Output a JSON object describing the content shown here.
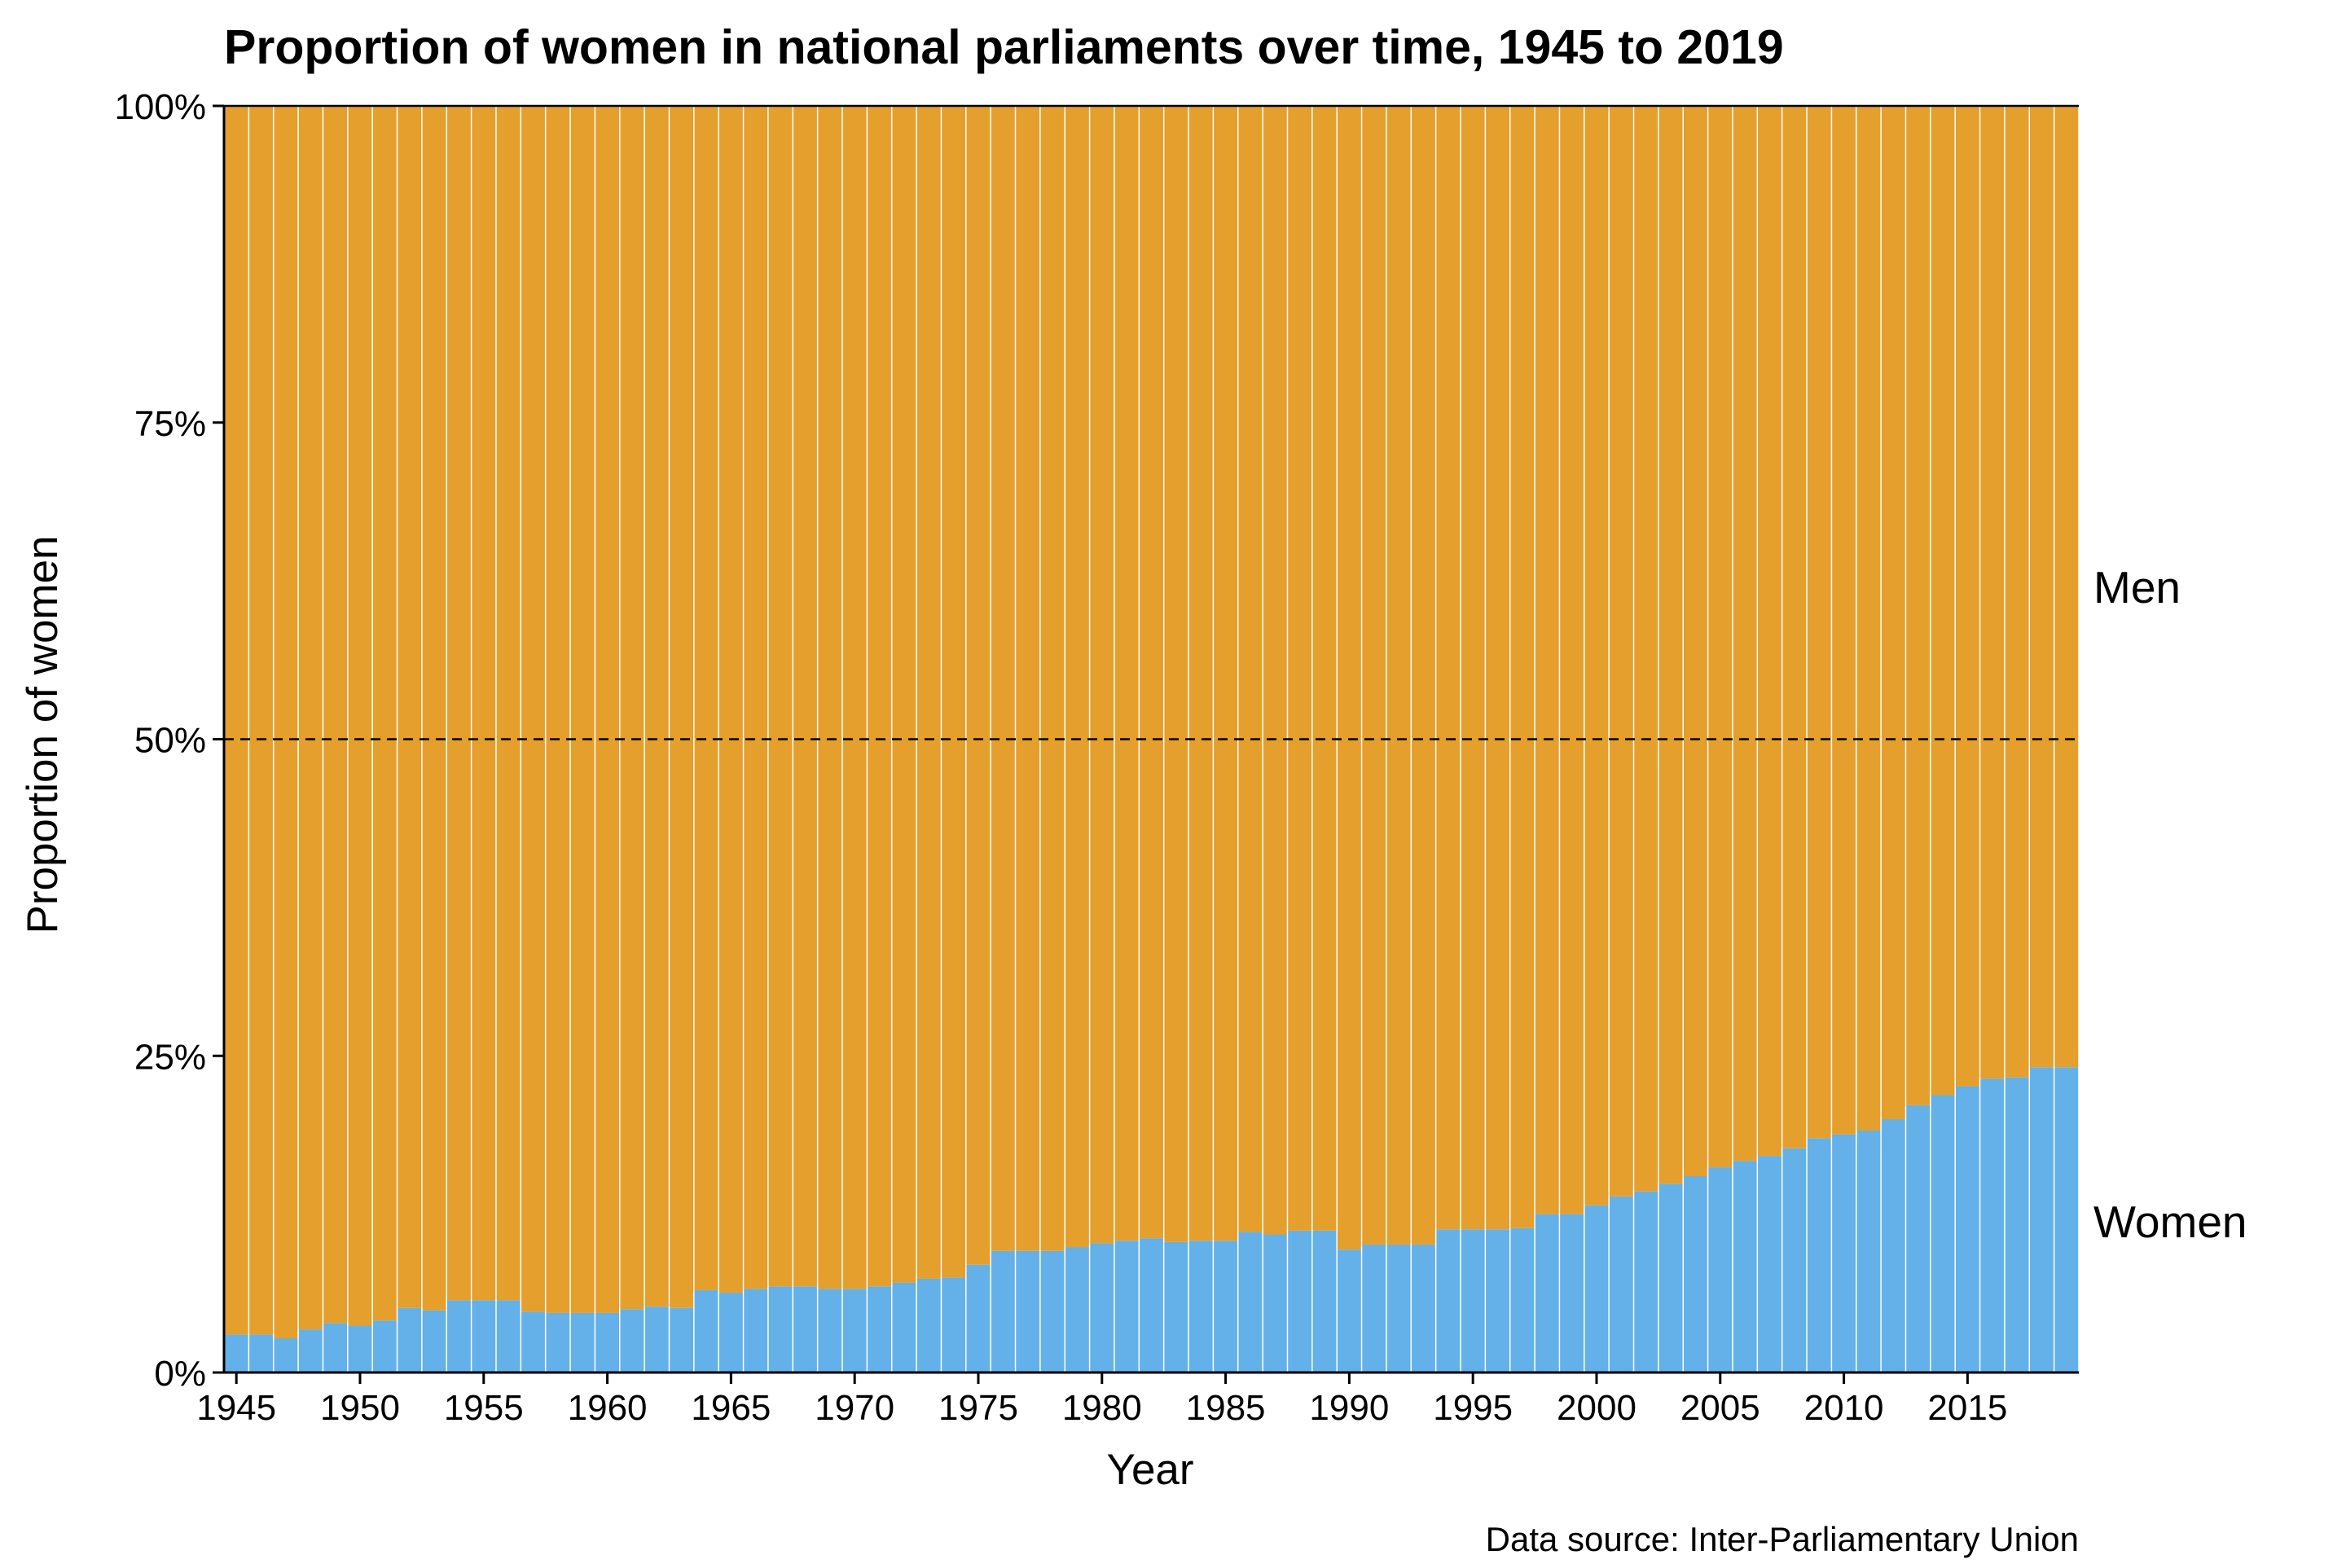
{
  "chart_data": {
    "type": "bar",
    "stacked": true,
    "percent_stacked": true,
    "title": "Proportion of women in national parliaments over time, 1945 to 2019",
    "xlabel": "Year",
    "ylabel": "Proportion of women",
    "caption": "Data source: Inter-Parliamentary Union",
    "xlim": [
      1945,
      2019
    ],
    "ylim": [
      0,
      100
    ],
    "x_ticks": [
      "1945",
      "1950",
      "1955",
      "1960",
      "1965",
      "1970",
      "1975",
      "1980",
      "1985",
      "1990",
      "1995",
      "2000",
      "2005",
      "2010",
      "2015"
    ],
    "y_ticks": [
      "0%",
      "25%",
      "50%",
      "75%",
      "100%"
    ],
    "reference_line": {
      "value": 50,
      "style": "dashed"
    },
    "grid": false,
    "legend": "direct labels at right",
    "series_labels": {
      "top": "Men",
      "bottom": "Women"
    },
    "colors": {
      "women": "#63b1e8",
      "men": "#e49f2c",
      "separator": "#ffffff",
      "reference": "#000000"
    },
    "categories": [
      1945,
      1946,
      1947,
      1948,
      1949,
      1950,
      1951,
      1952,
      1953,
      1954,
      1955,
      1956,
      1957,
      1958,
      1959,
      1960,
      1961,
      1962,
      1963,
      1964,
      1965,
      1966,
      1967,
      1968,
      1969,
      1970,
      1971,
      1972,
      1973,
      1974,
      1975,
      1976,
      1977,
      1978,
      1979,
      1980,
      1981,
      1982,
      1983,
      1984,
      1985,
      1986,
      1987,
      1988,
      1989,
      1990,
      1991,
      1992,
      1993,
      1994,
      1995,
      1996,
      1997,
      1998,
      1999,
      2000,
      2001,
      2002,
      2003,
      2004,
      2005,
      2006,
      2007,
      2008,
      2009,
      2010,
      2011,
      2012,
      2013,
      2014,
      2015,
      2016,
      2017,
      2018,
      2019
    ],
    "series": [
      {
        "name": "Women",
        "values": [
          3.0,
          3.0,
          2.7,
          3.4,
          3.9,
          3.7,
          4.1,
          5.1,
          4.9,
          5.7,
          5.7,
          5.7,
          4.8,
          4.7,
          4.7,
          4.7,
          5.0,
          5.2,
          5.1,
          6.5,
          6.3,
          6.6,
          6.8,
          6.8,
          6.6,
          6.6,
          6.8,
          7.1,
          7.4,
          7.5,
          8.5,
          9.6,
          9.6,
          9.6,
          9.9,
          10.2,
          10.4,
          10.6,
          10.3,
          10.4,
          10.4,
          11.1,
          10.9,
          11.2,
          11.2,
          9.7,
          10.1,
          10.1,
          10.1,
          11.3,
          11.3,
          11.3,
          11.4,
          12.5,
          12.5,
          13.2,
          13.9,
          14.3,
          14.9,
          15.5,
          16.2,
          16.7,
          17.1,
          17.7,
          18.5,
          18.8,
          19.1,
          20.0,
          21.1,
          21.9,
          22.6,
          23.2,
          23.3,
          24.1,
          24.1
        ]
      },
      {
        "name": "Men",
        "values": [
          97.0,
          97.0,
          97.3,
          96.6,
          96.1,
          96.3,
          95.9,
          94.9,
          95.1,
          94.3,
          94.3,
          94.3,
          95.2,
          95.3,
          95.3,
          95.3,
          95.0,
          94.8,
          94.9,
          93.5,
          93.7,
          93.4,
          93.2,
          93.2,
          93.4,
          93.4,
          93.2,
          92.9,
          92.6,
          92.5,
          91.5,
          90.4,
          90.4,
          90.4,
          90.1,
          89.8,
          89.6,
          89.4,
          89.7,
          89.6,
          89.6,
          88.9,
          89.1,
          88.8,
          88.8,
          90.3,
          89.9,
          89.9,
          89.9,
          88.7,
          88.7,
          88.7,
          88.6,
          87.5,
          87.5,
          86.8,
          86.1,
          85.7,
          85.1,
          84.5,
          83.8,
          83.3,
          82.9,
          82.3,
          81.5,
          81.2,
          80.9,
          80.0,
          78.9,
          78.1,
          77.4,
          76.8,
          76.7,
          75.9,
          75.9
        ]
      }
    ]
  }
}
